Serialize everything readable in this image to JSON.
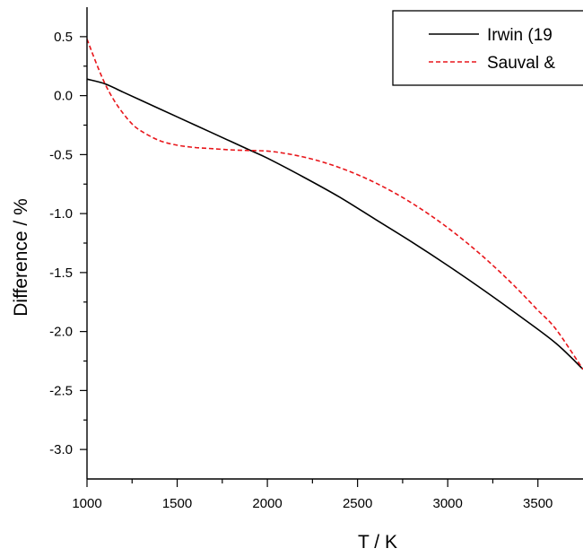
{
  "chart_data": {
    "type": "line",
    "xlabel": "T / K",
    "ylabel": "Difference / %",
    "xlim": [
      1000,
      3750
    ],
    "ylim": [
      -3.25,
      0.75
    ],
    "xticks": [
      1000,
      1500,
      2000,
      2500,
      3000,
      3500
    ],
    "yticks": [
      0.5,
      0.0,
      -0.5,
      -1.0,
      -1.5,
      -2.0,
      -2.5,
      -3.0
    ],
    "xtick_labels": [
      "1000",
      "1500",
      "2000",
      "2500",
      "3000",
      "3500"
    ],
    "ytick_labels": [
      "0.5",
      "0.0",
      "-0.5",
      "-1.0",
      "-1.5",
      "-2.0",
      "-2.5",
      "-3.0"
    ],
    "grid": false,
    "legend_position": "top-right",
    "series": [
      {
        "name": "Irwin (19",
        "color": "#000000",
        "style": "solid",
        "x": [
          1000,
          1100,
          1200,
          1300,
          1400,
          1500,
          1600,
          1700,
          1800,
          1900,
          2000,
          2200,
          2400,
          2600,
          2800,
          3000,
          3200,
          3400,
          3600,
          3750
        ],
        "y": [
          0.14,
          0.1,
          0.03,
          -0.04,
          -0.11,
          -0.18,
          -0.25,
          -0.32,
          -0.39,
          -0.46,
          -0.53,
          -0.69,
          -0.86,
          -1.05,
          -1.24,
          -1.44,
          -1.65,
          -1.87,
          -2.1,
          -2.32
        ]
      },
      {
        "name": "Sauval &",
        "color": "#e8161b",
        "style": "dashed",
        "x": [
          1000,
          1050,
          1100,
          1150,
          1200,
          1250,
          1300,
          1400,
          1500,
          1600,
          1700,
          1800,
          1900,
          2000,
          2100,
          2200,
          2300,
          2400,
          2500,
          2600,
          2700,
          2800,
          2900,
          3000,
          3100,
          3200,
          3300,
          3400,
          3500,
          3600,
          3750
        ],
        "y": [
          0.48,
          0.28,
          0.1,
          -0.04,
          -0.15,
          -0.24,
          -0.3,
          -0.38,
          -0.42,
          -0.44,
          -0.45,
          -0.46,
          -0.465,
          -0.47,
          -0.49,
          -0.52,
          -0.56,
          -0.61,
          -0.67,
          -0.74,
          -0.82,
          -0.91,
          -1.01,
          -1.12,
          -1.24,
          -1.37,
          -1.51,
          -1.66,
          -1.82,
          -1.98,
          -2.32
        ]
      }
    ]
  }
}
